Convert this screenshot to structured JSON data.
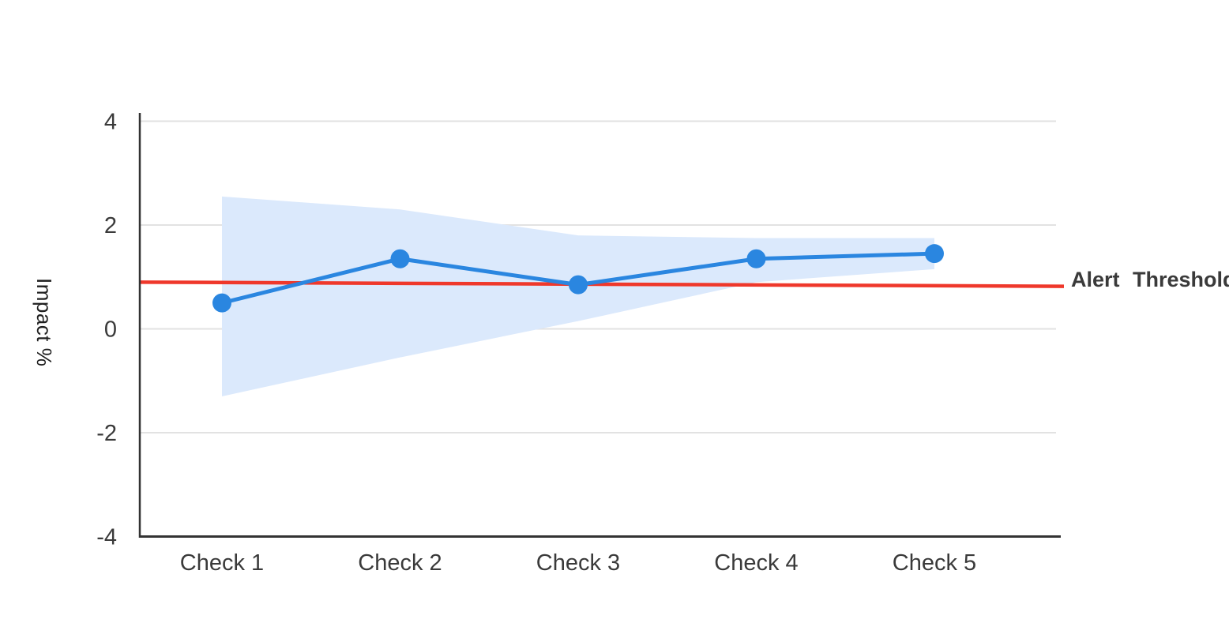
{
  "chart_data": {
    "type": "line",
    "title": "",
    "categories": [
      "Check 1",
      "Check 2",
      "Check 3",
      "Check 4",
      "Check 5"
    ],
    "series": [
      {
        "name": "Impact",
        "values": [
          0.5,
          1.35,
          0.85,
          1.35,
          1.45
        ],
        "color": "#2a86e0",
        "marker": "circle"
      }
    ],
    "band": {
      "name": "confidence-band",
      "upper": [
        2.55,
        2.3,
        1.8,
        1.75,
        1.75
      ],
      "lower": [
        -1.3,
        -0.55,
        0.15,
        0.9,
        1.15
      ],
      "color": "#dbe9fc"
    },
    "threshold": {
      "label": "Alert Threshold",
      "start_value": 0.9,
      "end_value": 0.82,
      "color": "#ef382b"
    },
    "xlabel": "",
    "ylabel": "Impact %",
    "ylim": [
      -4,
      4
    ],
    "yticks": [
      4,
      2,
      0,
      -2,
      -4
    ],
    "grid": true,
    "legend": "none",
    "colors": {
      "axis": "#333333",
      "gridline": "#e2e2e2",
      "tick_text": "#3a3a3a",
      "background": "#ffffff"
    }
  }
}
